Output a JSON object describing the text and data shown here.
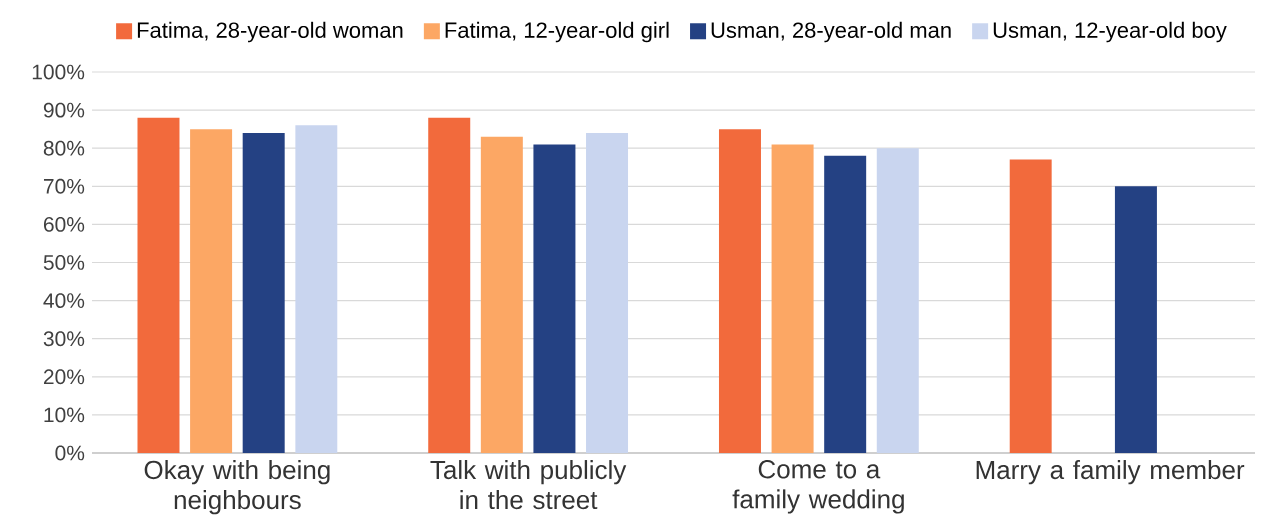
{
  "chart_data": {
    "type": "bar",
    "categories": [
      "Okay with being neighbours",
      "Talk with publicly in the street",
      "Come to a family wedding",
      "Marry a family member"
    ],
    "series": [
      {
        "name": "Fatima, 28-year-old woman",
        "color": "#f26a3c",
        "values": [
          88,
          88,
          85,
          77
        ]
      },
      {
        "name": "Fatima, 12-year-old girl",
        "color": "#fca764",
        "values": [
          85,
          83,
          81,
          null
        ]
      },
      {
        "name": "Usman, 28-year-old man",
        "color": "#244183",
        "values": [
          84,
          81,
          78,
          70
        ]
      },
      {
        "name": "Usman, 12-year-old boy",
        "color": "#c9d5ef",
        "values": [
          86,
          84,
          80,
          null
        ]
      }
    ],
    "ylim": [
      0,
      100
    ],
    "yticks": [
      {
        "value": 0,
        "label": "0%"
      },
      {
        "value": 10,
        "label": "10%"
      },
      {
        "value": 20,
        "label": "20%"
      },
      {
        "value": 30,
        "label": "30%"
      },
      {
        "value": 40,
        "label": "40%"
      },
      {
        "value": 50,
        "label": "50%"
      },
      {
        "value": 60,
        "label": "60%"
      },
      {
        "value": 70,
        "label": "70%"
      },
      {
        "value": 80,
        "label": "80%"
      },
      {
        "value": 90,
        "label": "90%"
      },
      {
        "value": 100,
        "label": "100%"
      }
    ],
    "grid": "y",
    "legend": "top"
  }
}
